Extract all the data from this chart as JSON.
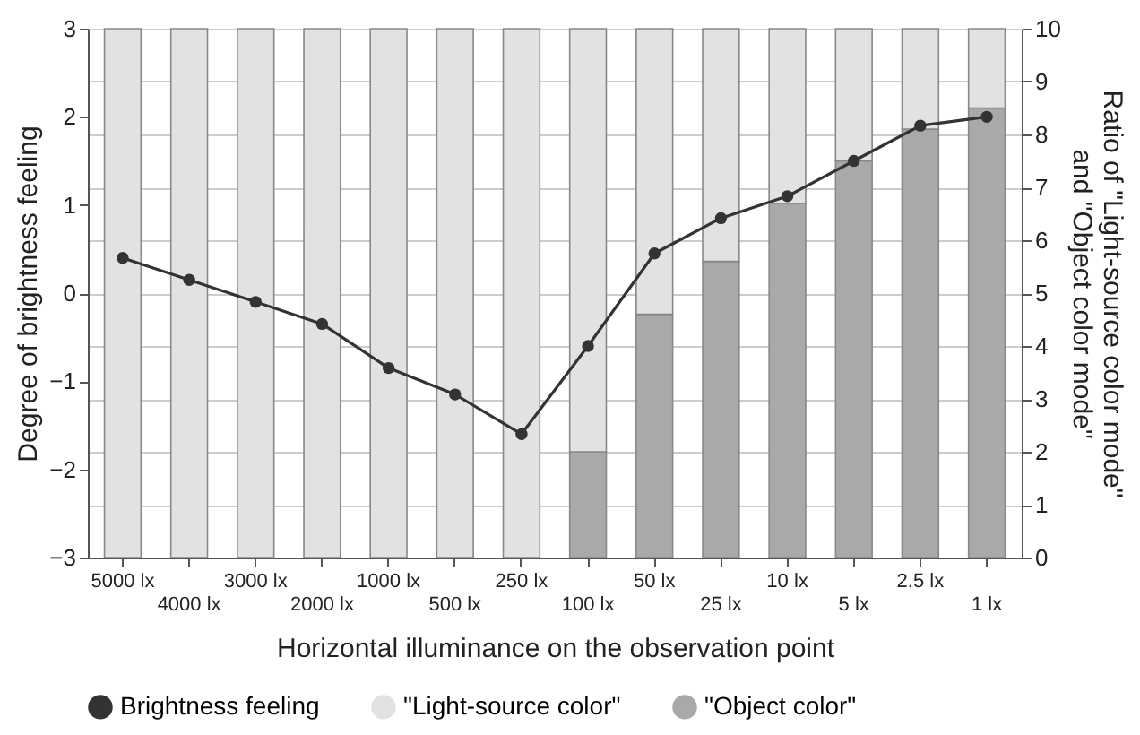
{
  "chart_data": {
    "type": "bar",
    "stacked": true,
    "xlabel": "Horizontal illuminance on the observation point",
    "ylabel": "Degree of brightness feeling",
    "y2label": "Ratio of \"Light-source color mode\" and \"Object color mode\"",
    "categories": [
      "5000 lx",
      "4000 lx",
      "3000 lx",
      "2000 lx",
      "1000 lx",
      "500 lx",
      "250 lx",
      "100 lx",
      "50 lx",
      "25 lx",
      "10 lx",
      "5 lx",
      "2.5 lx",
      "1 lx"
    ],
    "series": [
      {
        "name": "\"Object color\"",
        "axis": "y2",
        "color": "#a9a9a9",
        "values": [
          0,
          0,
          0,
          0,
          0,
          0,
          0,
          2.0,
          4.6,
          5.6,
          6.7,
          7.5,
          8.1,
          8.5
        ]
      },
      {
        "name": "\"Light-source color\"",
        "axis": "y2",
        "color": "#e2e2e2",
        "values": [
          10,
          10,
          10,
          10,
          10,
          10,
          10,
          8.0,
          5.4,
          4.4,
          3.3,
          2.5,
          1.9,
          1.5
        ]
      },
      {
        "name": "Brightness feeling",
        "type": "line",
        "color": "#333333",
        "values": [
          0.4,
          0.15,
          -0.1,
          -0.35,
          -0.85,
          -1.15,
          -1.6,
          -0.6,
          0.45,
          0.85,
          1.1,
          1.5,
          1.9,
          2.0
        ]
      }
    ],
    "ylim": [
      -3,
      3
    ],
    "yticks": [
      -3,
      -2,
      -1,
      0,
      1,
      2,
      3
    ],
    "y2lim": [
      0,
      10
    ],
    "y2ticks": [
      0,
      1,
      2,
      3,
      4,
      5,
      6,
      7,
      8,
      9,
      10
    ],
    "grid": true,
    "legend": "bottom",
    "marker": "circle",
    "line_style": "solid"
  }
}
